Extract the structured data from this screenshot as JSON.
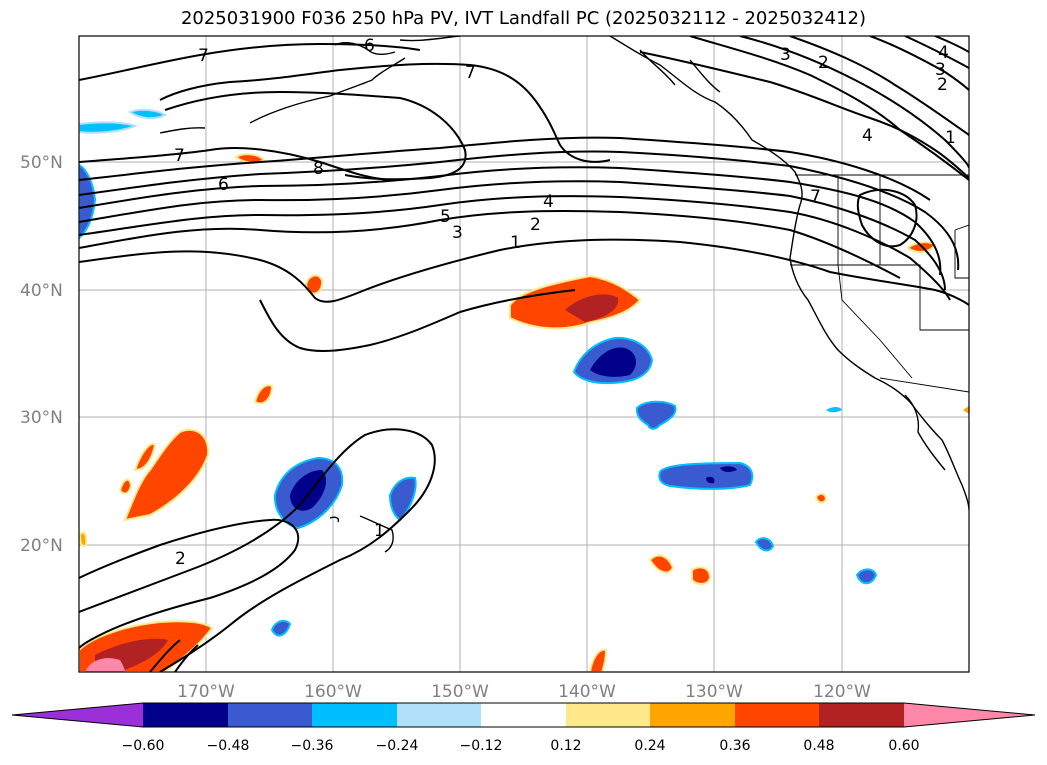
{
  "title": "2025031900 F036 250 hPa PV, IVT Landfall PC (2025032112 - 2025032412)",
  "latitude_labels": [
    "50°N",
    "40°N",
    "30°N",
    "20°N"
  ],
  "longitude_labels": [
    "170°W",
    "160°W",
    "150°W",
    "140°W",
    "130°W",
    "120°W"
  ],
  "colorbar": {
    "tick_labels": [
      "−0.60",
      "−0.48",
      "−0.36",
      "−0.24",
      "−0.12",
      "0.12",
      "0.24",
      "0.36",
      "0.48",
      "0.60"
    ],
    "colors": [
      "#9b30d9",
      "#00008b",
      "#3a5bd0",
      "#00bfff",
      "#b0e0fa",
      "#ffffff",
      "#ffe98a",
      "#ffa500",
      "#ff4500",
      "#b22222",
      "#ff88aa",
      "#ff88aa"
    ]
  },
  "pv_contour_labels": [
    "7",
    "6",
    "7",
    "7",
    "8",
    "6",
    "5",
    "4",
    "3",
    "2",
    "1",
    "3",
    "2",
    "4",
    "3",
    "2",
    "1",
    "4",
    "7",
    "2",
    "1"
  ]
}
